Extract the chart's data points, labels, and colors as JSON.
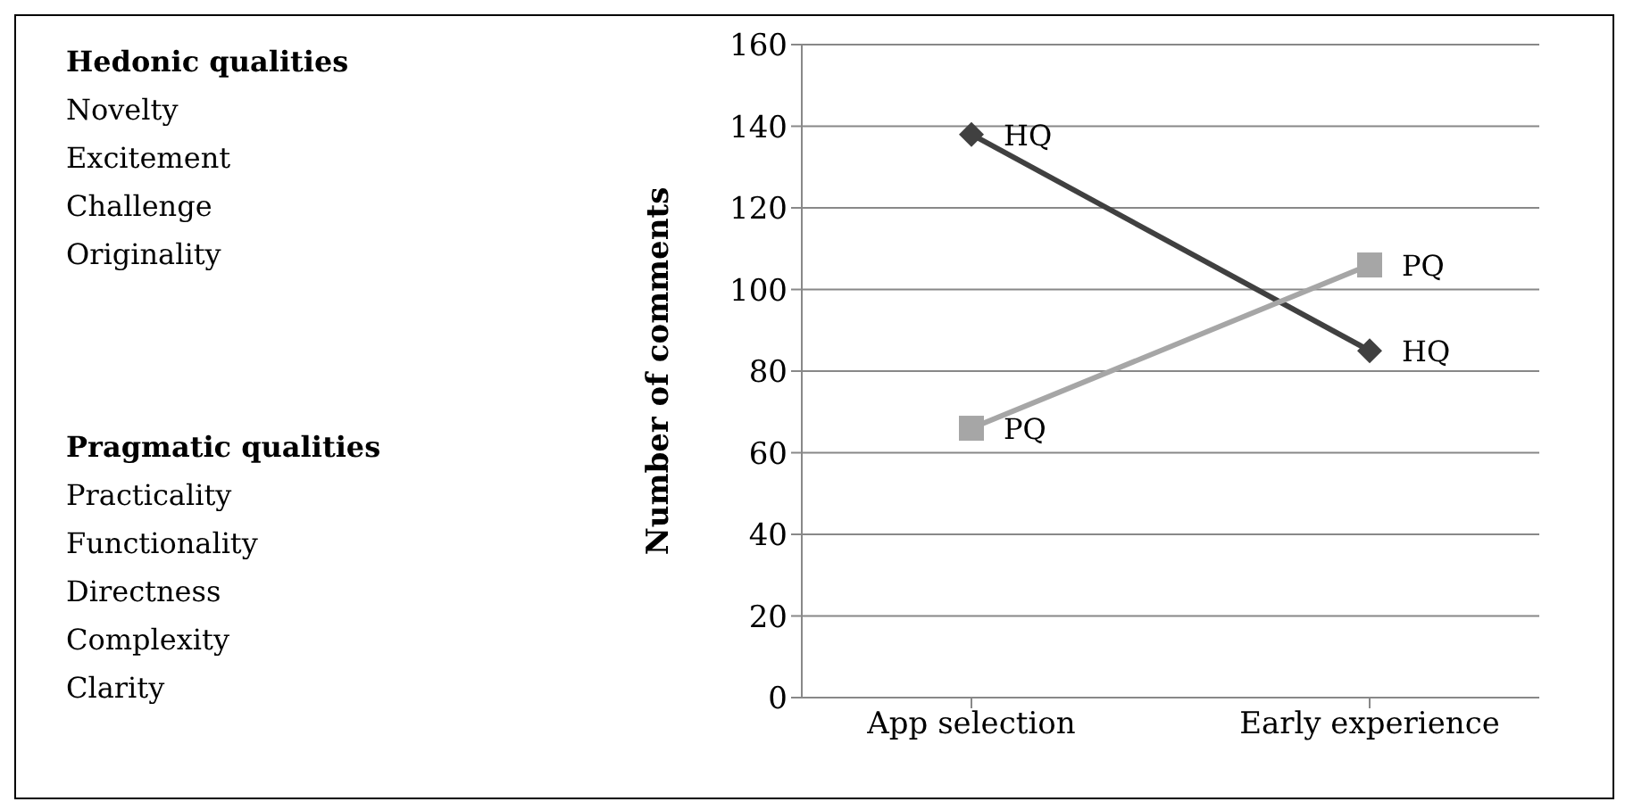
{
  "chart_data": {
    "type": "line",
    "ylabel": "Number of comments",
    "categories": [
      "App selection",
      "Early experience"
    ],
    "series": [
      {
        "name": "HQ",
        "color": "#404040",
        "marker": "diamond",
        "values": [
          138,
          85
        ]
      },
      {
        "name": "PQ",
        "color": "#a6a6a6",
        "marker": "square",
        "values": [
          66,
          106
        ]
      }
    ],
    "ylim": [
      0,
      160
    ],
    "yticks": [
      0,
      20,
      40,
      60,
      80,
      100,
      120,
      140,
      160
    ],
    "grid": "y",
    "annotations": [
      "Hedonic qualities",
      "Novelty",
      "Excitement",
      "Challenge",
      "Originality",
      "Pragmatic qualities",
      "Practicality",
      "Functionality",
      "Directness",
      "Complexity",
      "Clarity"
    ]
  }
}
